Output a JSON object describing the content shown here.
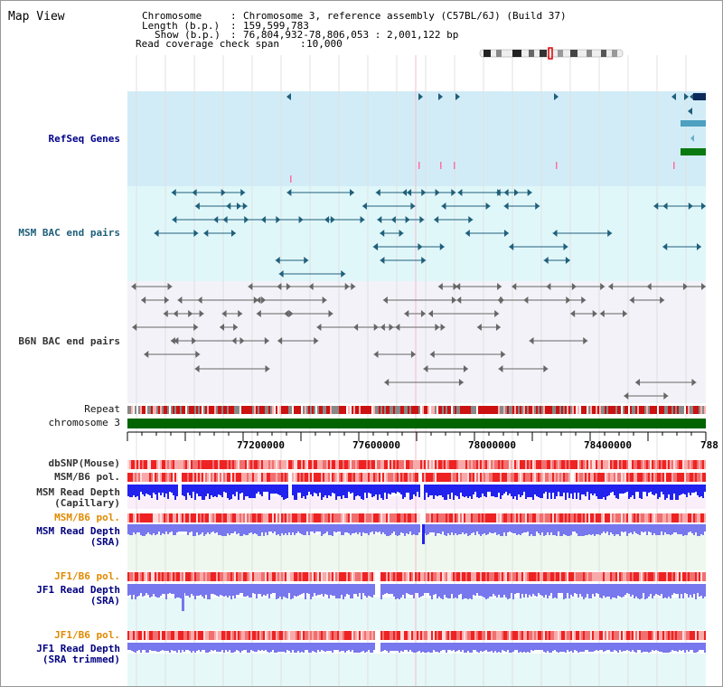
{
  "title": "Map View",
  "header": {
    "chromosome_label": "Chromosome",
    "chromosome_value": "Chromosome 3, reference assembly (C57BL/6J) (Build 37)",
    "length_label": "Length (b.p.)",
    "length_value": "159,599,783",
    "show_label": "Show (b.p.)",
    "show_value": "76,804,932-78,806,053 : 2,001,122 bp",
    "coverage_label": "Read coverage check span",
    "coverage_value": "10,000"
  },
  "tracks": {
    "refseq": "RefSeq Genes",
    "msm_bac": "MSM BAC end pairs",
    "b6n_bac": "B6N BAC end pairs",
    "repeat": "Repeat",
    "chromosome": "chromosome 3",
    "dbsnp": "dbSNP(Mouse)",
    "msm_pol_1": "MSM/B6 pol.",
    "msm_depth_cap_1": "MSM Read Depth",
    "msm_depth_cap_2": "(Capillary)",
    "msm_pol_2": "MSM/B6 pol.",
    "msm_depth_sra_1": "MSM Read Depth",
    "msm_depth_sra_2": "(SRA)",
    "jf1_pol_1": "JF1/B6 pol.",
    "jf1_depth_1": "JF1 Read Depth",
    "jf1_depth_2": "(SRA)",
    "jf1_pol_2": "JF1/B6 pol.",
    "jf1_trim_1": "JF1 Read Depth",
    "jf1_trim_2": "(SRA trimmed)"
  },
  "axis": {
    "ticks": [
      "77200000",
      "77600000",
      "78000000",
      "78400000",
      "788"
    ]
  },
  "colors": {
    "refseq_bg": "#d2ecf7",
    "msm_bg": "#e0f7fa",
    "b6n_bg": "#f2f2f8",
    "chromosome": "#006400",
    "polymorphism": "#ee4444",
    "depth": "#2222ee",
    "depth_light": "#7777ee",
    "msm_bac": "#1f5f7a",
    "b6n_bac": "#666666"
  }
}
